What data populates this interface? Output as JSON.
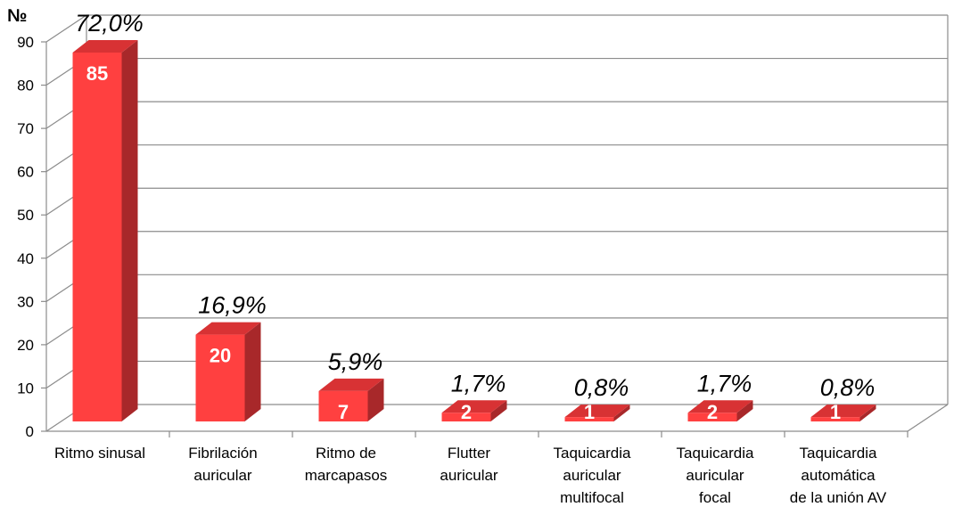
{
  "chart_data": {
    "type": "bar",
    "ylabel": "№",
    "xlabel": "",
    "title": "",
    "ylim": [
      0,
      90
    ],
    "yticks": [
      "0",
      "10",
      "20",
      "30",
      "40",
      "50",
      "60",
      "70",
      "80",
      "90"
    ],
    "categories": [
      [
        "Ritmo sinusal"
      ],
      [
        "Fibrilación",
        "auricular"
      ],
      [
        "Ritmo de",
        "marcapasos"
      ],
      [
        "Flutter",
        "auricular"
      ],
      [
        "Taquicardia",
        "auricular",
        "multifocal"
      ],
      [
        "Taquicardia",
        "auricular",
        "focal"
      ],
      [
        "Taquicardia",
        "automática",
        "de la unión AV"
      ]
    ],
    "values": [
      85,
      20,
      7,
      2,
      1,
      2,
      1
    ],
    "value_labels": [
      "85",
      "20",
      "7",
      "2",
      "1",
      "2",
      "1"
    ],
    "percent_labels": [
      "72,0%",
      "16,9%",
      "5,9%",
      "1,7%",
      "0,8%",
      "1,7%",
      "0,8%"
    ],
    "grid": true,
    "style": "3d",
    "colors": {
      "bar_front": "#ff4040",
      "bar_side": "#a8282a",
      "bar_top": "#d83234",
      "grid": "#8c8c8c"
    }
  }
}
